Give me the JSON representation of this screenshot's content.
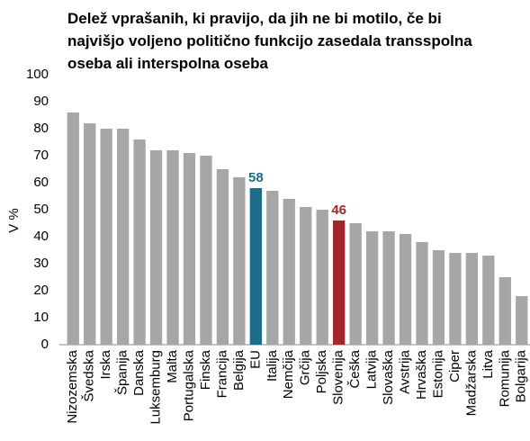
{
  "chart_data": {
    "type": "bar",
    "title": "Delež vprašanih, ki pravijo, da jih ne bi motilo, če bi najvišjo voljeno politično funkcijo zasedala transspolna oseba ali interspolna oseba",
    "ylabel": "V %",
    "categories": [
      "Nizozemska",
      "Švedska",
      "Irska",
      "Španija",
      "Danska",
      "Luksemburg",
      "Malta",
      "Portugalska",
      "Finska",
      "Francija",
      "Belgija",
      "EU",
      "Italija",
      "Nemčija",
      "Grčija",
      "Poljska",
      "Slovenija",
      "Češka",
      "Latvija",
      "Slovaška",
      "Avstrija",
      "Hrvaška",
      "Estonija",
      "Ciper",
      "Madžarska",
      "Litva",
      "Romunija",
      "Bolgarija"
    ],
    "values": [
      86,
      82,
      80,
      80,
      76,
      72,
      72,
      71,
      70,
      65,
      62,
      58,
      57,
      54,
      51,
      50,
      46,
      45,
      42,
      42,
      41,
      38,
      35,
      34,
      34,
      33,
      25,
      18
    ],
    "color": "#a6a6a6",
    "colors": [
      "#a6a6a6",
      "#a6a6a6",
      "#a6a6a6",
      "#a6a6a6",
      "#a6a6a6",
      "#a6a6a6",
      "#a6a6a6",
      "#a6a6a6",
      "#a6a6a6",
      "#a6a6a6",
      "#a6a6a6",
      "#1a6e8a",
      "#a6a6a6",
      "#a6a6a6",
      "#a6a6a6",
      "#a6a6a6",
      "#a6252a",
      "#a6a6a6",
      "#a6a6a6",
      "#a6a6a6",
      "#a6a6a6",
      "#a6a6a6",
      "#a6a6a6",
      "#a6a6a6",
      "#a6a6a6",
      "#a6a6a6",
      "#a6a6a6",
      "#a6a6a6"
    ],
    "ylim": [
      0,
      100
    ],
    "yticks": [
      0,
      10,
      20,
      30,
      40,
      50,
      60,
      70,
      80,
      90,
      100
    ],
    "grid": false
  }
}
